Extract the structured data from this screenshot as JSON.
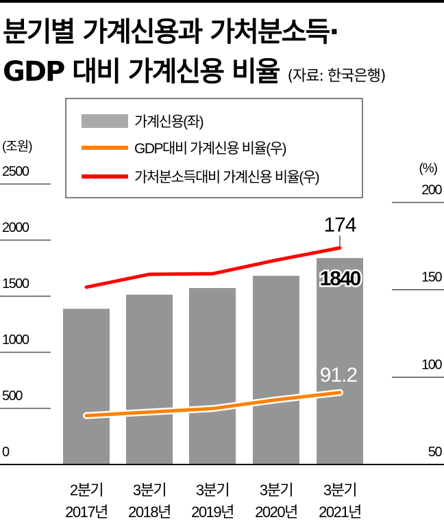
{
  "title_line1": "분기별 가계신용과 가처분소득·",
  "title_line2": "GDP 대비 가계신용 비율",
  "source": "(자료: 한국은행)",
  "colors": {
    "bar": "#959595",
    "legend_bar": "#aaaaaa",
    "gdp_line": "#ff8000",
    "income_line": "#ff0000"
  },
  "chart_data": {
    "type": "bar+line",
    "categories": [
      [
        "2분기",
        "2017년"
      ],
      [
        "3분기",
        "2018년"
      ],
      [
        "3분기",
        "2019년"
      ],
      [
        "3분기",
        "2020년"
      ],
      [
        "3분기",
        "2021년"
      ]
    ],
    "series": [
      {
        "name": "가계신용(좌)",
        "type": "bar",
        "axis": "left",
        "values": [
          1388,
          1514,
          1573,
          1682,
          1840
        ]
      },
      {
        "name": "GDP대비 가계신용 비율(우)",
        "type": "line",
        "axis": "right",
        "values": [
          78,
          80,
          82,
          87,
          91.2
        ]
      },
      {
        "name": "가처분소득대비 가계신용 비율(우)",
        "type": "line",
        "axis": "right",
        "values": [
          151.5,
          158.9,
          159.2,
          167,
          174
        ]
      }
    ],
    "data_labels": {
      "bar_last": "1840",
      "gdp_last": "91.2",
      "income_last": "174"
    },
    "left_axis": {
      "unit": "(조원)",
      "ylim": [
        0,
        2500
      ],
      "ticks": [
        "0",
        "500",
        "1000",
        "1500",
        "2000",
        "2500"
      ]
    },
    "right_axis": {
      "unit": "(%)",
      "ylim": [
        50,
        200
      ],
      "ticks": [
        "50",
        "100",
        "150",
        "200"
      ]
    },
    "legend_placement": "top"
  }
}
